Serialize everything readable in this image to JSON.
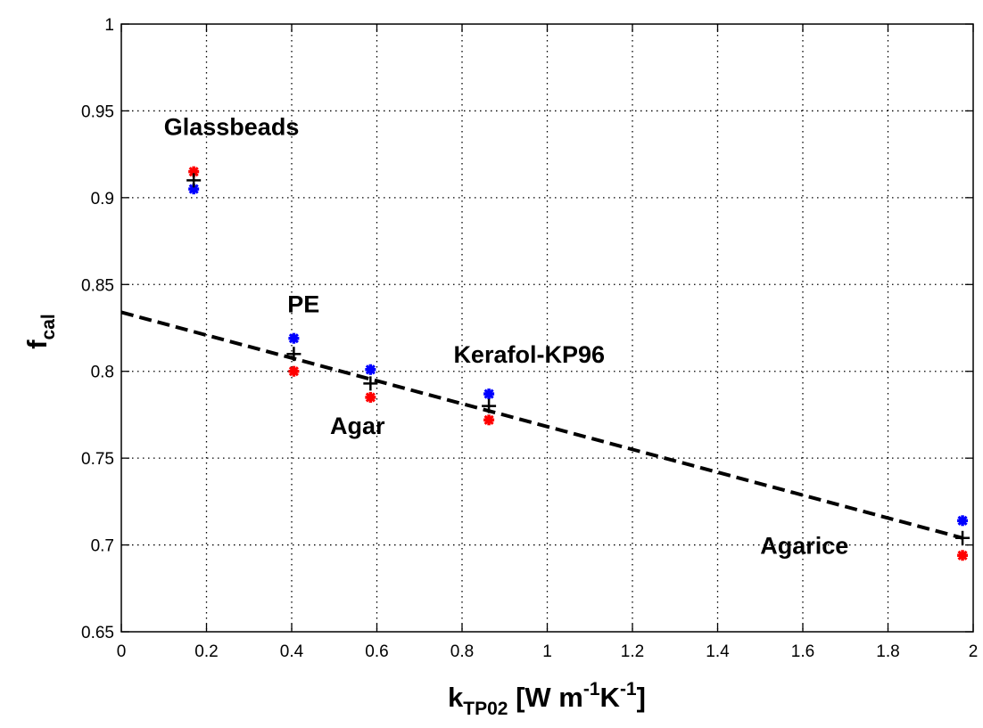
{
  "chart_data": {
    "type": "scatter",
    "xlim": [
      0,
      2
    ],
    "ylim": [
      0.65,
      1
    ],
    "x_ticks": [
      "0",
      "0.2",
      "0.4",
      "0.6",
      "0.8",
      "1",
      "1.2",
      "1.4",
      "1.6",
      "1.8",
      "2"
    ],
    "y_ticks": [
      "0.65",
      "0.7",
      "0.75",
      "0.8",
      "0.85",
      "0.9",
      "0.95",
      "1"
    ],
    "xlabel": {
      "main": "k",
      "sub": "TP02",
      "units_a": " [W m",
      "sup_a": "-1",
      "units_b": "K",
      "sup_b": "-1",
      "units_c": "]"
    },
    "ylabel": {
      "main": "f",
      "sub": "cal"
    },
    "grid": true,
    "series": [
      {
        "marker": "*",
        "color": "#0000ff",
        "points": [
          {
            "x": 0.17,
            "y": 0.905
          },
          {
            "x": 0.405,
            "y": 0.819
          },
          {
            "x": 0.585,
            "y": 0.801
          },
          {
            "x": 0.863,
            "y": 0.787
          },
          {
            "x": 1.975,
            "y": 0.714
          }
        ]
      },
      {
        "marker": "*",
        "color": "#ff0000",
        "points": [
          {
            "x": 0.17,
            "y": 0.915
          },
          {
            "x": 0.405,
            "y": 0.8
          },
          {
            "x": 0.585,
            "y": 0.785
          },
          {
            "x": 0.863,
            "y": 0.772
          },
          {
            "x": 1.975,
            "y": 0.694
          }
        ]
      },
      {
        "marker": "+",
        "color": "#000000",
        "points": [
          {
            "x": 0.17,
            "y": 0.91
          },
          {
            "x": 0.405,
            "y": 0.81
          },
          {
            "x": 0.585,
            "y": 0.793
          },
          {
            "x": 0.863,
            "y": 0.78
          },
          {
            "x": 1.975,
            "y": 0.704
          }
        ]
      }
    ],
    "fit_line": {
      "style": "dashed",
      "color": "#000000",
      "x": [
        0,
        1.975
      ],
      "y": [
        0.834,
        0.704
      ]
    },
    "annotations": [
      {
        "text": "Glassbeads",
        "x": 0.1,
        "y": 0.936
      },
      {
        "text": "PE",
        "x": 0.39,
        "y": 0.834
      },
      {
        "text": "Agar",
        "x": 0.49,
        "y": 0.764
      },
      {
        "text": "Kerafol-KP96",
        "x": 0.78,
        "y": 0.805
      },
      {
        "text": "Agarice",
        "x": 1.5,
        "y": 0.695
      }
    ]
  }
}
